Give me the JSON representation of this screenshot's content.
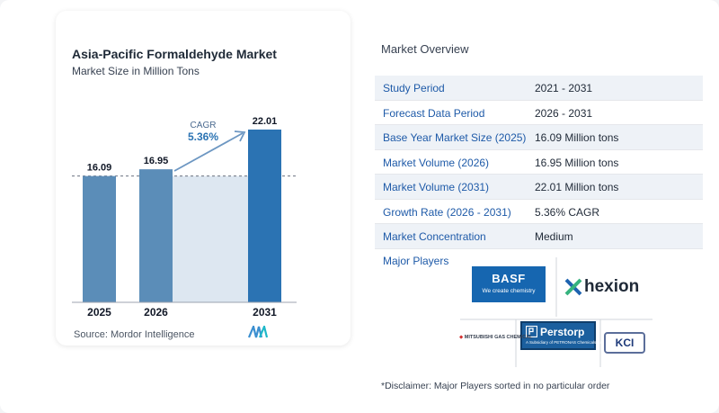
{
  "chart_data": {
    "type": "bar",
    "title": "Asia-Pacific Formaldehyde Market",
    "subtitle": "Market Size in Million Tons",
    "categories": [
      "2025",
      "2026",
      "2031"
    ],
    "values": [
      16.09,
      16.95,
      22.01
    ],
    "value_labels": [
      "16.09",
      "16.95",
      "22.01"
    ],
    "ylim": [
      0,
      22.01
    ],
    "grid": false,
    "annotation": {
      "label": "CAGR",
      "value": "5.36%"
    },
    "bar_colors": [
      "#5b8db8",
      "#5b8db8",
      "#2b73b3"
    ],
    "forecast_band_color": "#dde7f1"
  },
  "source": "Source:  Mordor Intelligence",
  "overview": {
    "title": "Market Overview",
    "rows": [
      {
        "label": "Study Period",
        "value": "2021 - 2031"
      },
      {
        "label": "Forecast Data Period",
        "value": "2026 - 2031"
      },
      {
        "label": "Base Year Market Size (2025)",
        "value": "16.09 Million tons"
      },
      {
        "label": "Market Volume (2026)",
        "value": "16.95 Million tons"
      },
      {
        "label": "Market Volume (2031)",
        "value": "22.01 Million tons"
      },
      {
        "label": "Growth Rate (2026 - 2031)",
        "value": "5.36% CAGR"
      },
      {
        "label": "Market Concentration",
        "value": "Medium"
      }
    ],
    "players_label": "Major Players",
    "players": {
      "basf_name": "BASF",
      "basf_tagline": "We create chemistry",
      "hexion_name": "hexion",
      "perstorp_name": "Perstorp",
      "perstorp_tagline": "A Subsidiary of PETRONAS Chemicals Group",
      "mgc_name": "MITSUBISHI GAS CHEMICAL",
      "kci_name": "KCI"
    },
    "disclaimer": "*Disclaimer: Major Players sorted in no particular order"
  },
  "colors": {
    "accent": "#1e5aa8",
    "bar": "#5b8db8",
    "bar_highlight": "#2b73b3"
  }
}
